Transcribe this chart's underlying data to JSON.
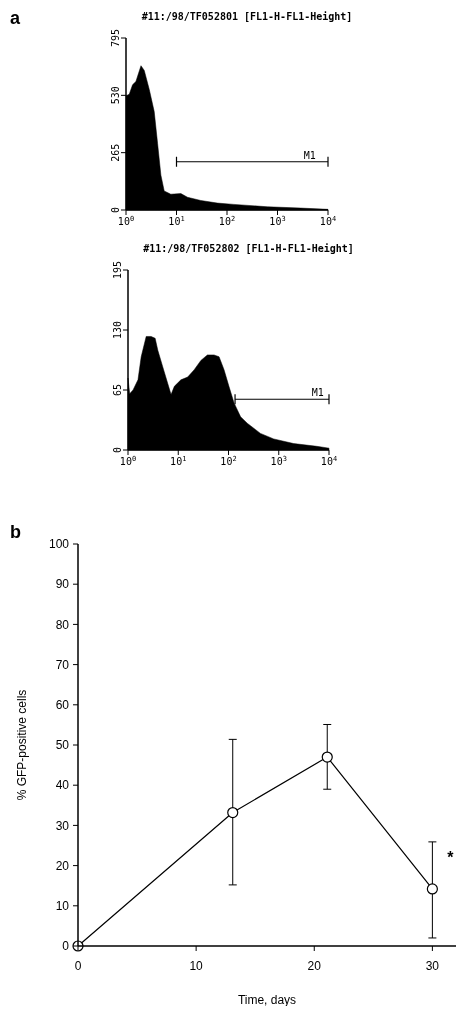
{
  "chart_data": [
    {
      "type": "area",
      "title": "#11:/98/TF052801 [FL1-H-FL1-Height]",
      "annotations": [
        "a"
      ],
      "log": "x",
      "xlim": [
        1,
        10000
      ],
      "ylim": [
        0,
        795
      ],
      "xticks": [
        {
          "value": 1,
          "label": "10$^{0}$"
        },
        {
          "value": 10,
          "label": "10$^{1}$"
        },
        {
          "value": 100,
          "label": "10$^{2}$"
        },
        {
          "value": 1000,
          "label": "10$^{3}$"
        },
        {
          "value": 10000,
          "label": "10$^{4}$"
        }
      ],
      "yticks": [
        0,
        265,
        530,
        795
      ],
      "x": [
        1,
        1.16,
        1.35,
        1.57,
        1.98,
        2.3,
        2.89,
        3.62,
        4.22,
        4.91,
        5.71,
        7.73,
        12.2,
        16.5,
        30.2,
        64.3,
        137,
        627,
        2840,
        10000
      ],
      "series": [
        {
          "color": "#000000",
          "values": [
            528,
            535,
            579,
            594,
            667,
            645,
            557,
            455,
            308,
            161,
            88,
            73,
            76,
            59,
            44,
            32,
            26,
            15,
            9,
            3
          ]
        },
        {
          "type": "line",
          "name": "M1",
          "color": "#000000",
          "x": [
            10,
            10000
          ],
          "values": [
            223,
            223
          ]
        }
      ]
    },
    {
      "type": "area",
      "title": "#11:/98/TF052802 [FL1-H-FL1-Height]",
      "log": "x",
      "xlim": [
        1,
        10000
      ],
      "ylim": [
        0,
        195
      ],
      "xticks": [
        {
          "value": 1,
          "label": "10$^{0}$"
        },
        {
          "value": 10,
          "label": "10$^{1}$"
        },
        {
          "value": 100,
          "label": "10$^{2}$"
        },
        {
          "value": 1000,
          "label": "10$^{3}$"
        },
        {
          "value": 10000,
          "label": "10$^{4}$"
        }
      ],
      "yticks": [
        0,
        65,
        130,
        195
      ],
      "x": [
        1,
        1.08,
        1.26,
        1.58,
        1.83,
        2.3,
        2.89,
        3.47,
        3.92,
        4.92,
        6.18,
        7.19,
        8.37,
        11.3,
        15.4,
        20.8,
        28.2,
        38,
        51.6,
        64.9,
        81.5,
        102,
        129,
        174,
        236,
        432,
        793,
        1973,
        5700,
        10000
      ],
      "series": [
        {
          "color": "#000000",
          "values": [
            78,
            61,
            65,
            76,
            101,
            123,
            123,
            121,
            108,
            90,
            72,
            60,
            69,
            76,
            79,
            87,
            97,
            103,
            103,
            101,
            87,
            69,
            51,
            36,
            29,
            18,
            12,
            7,
            4,
            2
          ]
        },
        {
          "type": "line",
          "name": "M1",
          "color": "#000000",
          "x": [
            135,
            10000
          ],
          "values": [
            55,
            55
          ]
        }
      ]
    },
    {
      "type": "line",
      "annotations": [
        "b",
        {
          "text": "*",
          "x": 30,
          "y": 22
        }
      ],
      "xlabel": "Time, days",
      "ylabel": "% GFP-positive cells",
      "xlim": [
        0,
        32
      ],
      "ylim": [
        0,
        100
      ],
      "xticks": [
        0,
        10,
        20,
        30
      ],
      "yticks": [
        0,
        10,
        20,
        30,
        40,
        50,
        60,
        70,
        80,
        90,
        100
      ],
      "marker": "circle",
      "line_style": "solid",
      "x": [
        0,
        13.1,
        21.1,
        30
      ],
      "series": [
        {
          "color": "#000000",
          "values": [
            0,
            33.2,
            47,
            14.2
          ],
          "errors": [
            null,
            [
              15.2,
              51.4
            ],
            [
              39,
              55.1
            ],
            [
              2,
              25.9
            ]
          ]
        }
      ]
    }
  ]
}
